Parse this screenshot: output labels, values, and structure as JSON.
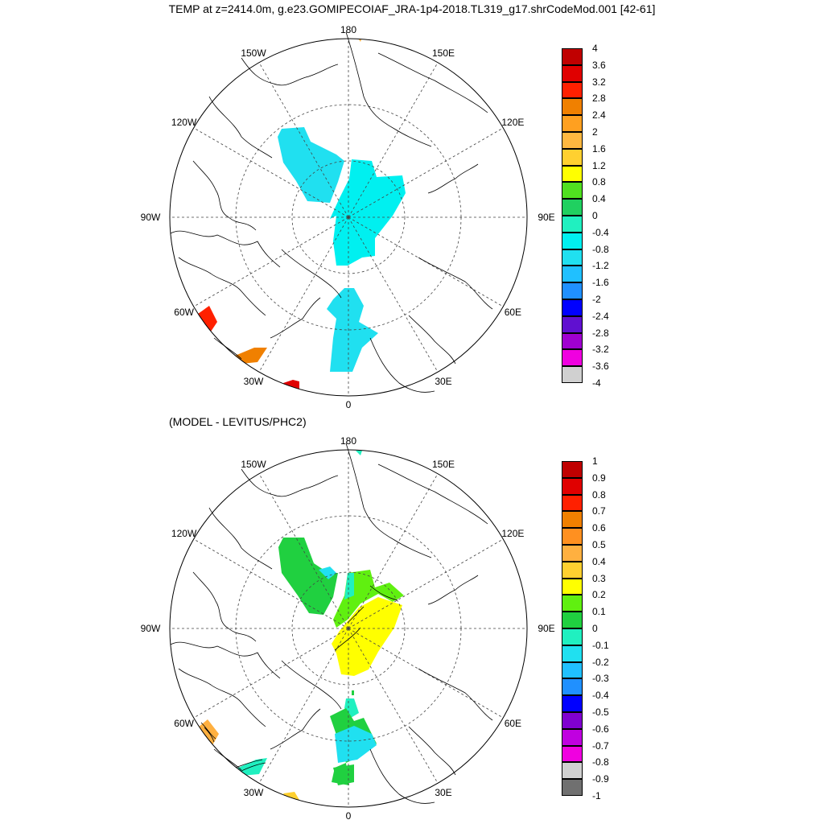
{
  "title": "TEMP at z=2414.0m, g.e23.GOMIPECOIAF_JRA-1p4-2018.TL319_g17.shrCodeMod.001 [42-61]",
  "panels": [
    {
      "id": "model",
      "subtitle": "",
      "longitude_labels": [
        "180",
        "150E",
        "120E",
        "90E",
        "60E",
        "30E",
        "0",
        "30W",
        "60W",
        "90W",
        "120W",
        "150W"
      ],
      "colorbar": {
        "labels": [
          "4",
          "3.6",
          "3.2",
          "2.8",
          "2.4",
          "2",
          "1.6",
          "1.2",
          "0.8",
          "0.4",
          "0",
          "-0.4",
          "-0.8",
          "-1.2",
          "-1.6",
          "-2",
          "-2.4",
          "-2.8",
          "-3.2",
          "-3.6",
          "-4"
        ],
        "colors": [
          "#c00000",
          "#e00000",
          "#ff2000",
          "#f08000",
          "#ffa020",
          "#ffb840",
          "#ffd030",
          "#ffff00",
          "#50e020",
          "#20d060",
          "#20f0c0",
          "#00f0f0",
          "#20e0f0",
          "#20c0ff",
          "#2090ff",
          "#0000ff",
          "#6010d0",
          "#a000d0",
          "#f000e0",
          "#d0d0d0",
          "#707070"
        ]
      },
      "fields": [
        {
          "name": "central-arctic-cyan-patch",
          "color": "#20e0f0"
        },
        {
          "name": "eurasian-basin-cyan-patch",
          "color": "#00f0f0"
        },
        {
          "name": "fram-strait-cyan-patch",
          "color": "#20e0f0"
        },
        {
          "name": "labrador-red-patch",
          "color": "#ff2000"
        },
        {
          "name": "irminger-orange-patch",
          "color": "#f08000"
        },
        {
          "name": "iceland-red-patch",
          "color": "#e00000"
        }
      ]
    },
    {
      "id": "difference",
      "subtitle": "(MODEL - LEVITUS/PHC2)",
      "longitude_labels": [
        "180",
        "150E",
        "120E",
        "90E",
        "60E",
        "30E",
        "0",
        "30W",
        "60W",
        "90W",
        "120W",
        "150W"
      ],
      "colorbar": {
        "labels": [
          "1",
          "0.9",
          "0.8",
          "0.7",
          "0.6",
          "0.5",
          "0.4",
          "0.3",
          "0.2",
          "0.1",
          "0",
          "-0.1",
          "-0.2",
          "-0.3",
          "-0.4",
          "-0.5",
          "-0.6",
          "-0.7",
          "-0.8",
          "-0.9",
          "-1"
        ],
        "colors": [
          "#c00000",
          "#e00000",
          "#ff2000",
          "#f08000",
          "#ff9020",
          "#ffb040",
          "#ffd030",
          "#ffff00",
          "#60f010",
          "#20d040",
          "#20f0c0",
          "#20e0f0",
          "#20c0ff",
          "#2090ff",
          "#0000ff",
          "#8000d0",
          "#c000e0",
          "#f000e0",
          "#d0d0d0",
          "#707070",
          "#707070"
        ]
      },
      "fields": [
        {
          "name": "central-arctic-green-patch",
          "color": "#20d040"
        },
        {
          "name": "eurasian-basin-yellow-patch",
          "color": "#ffff00"
        },
        {
          "name": "lomonosov-green-strip",
          "color": "#60f010"
        },
        {
          "name": "fram-strait-green-patch",
          "color": "#20d040"
        },
        {
          "name": "fram-strait-cyan-patch",
          "color": "#20f0c0"
        },
        {
          "name": "labrador-contour-patch",
          "color": "#ffb040"
        },
        {
          "name": "irminger-contour-patch",
          "color": "#20f0c0"
        }
      ]
    }
  ]
}
